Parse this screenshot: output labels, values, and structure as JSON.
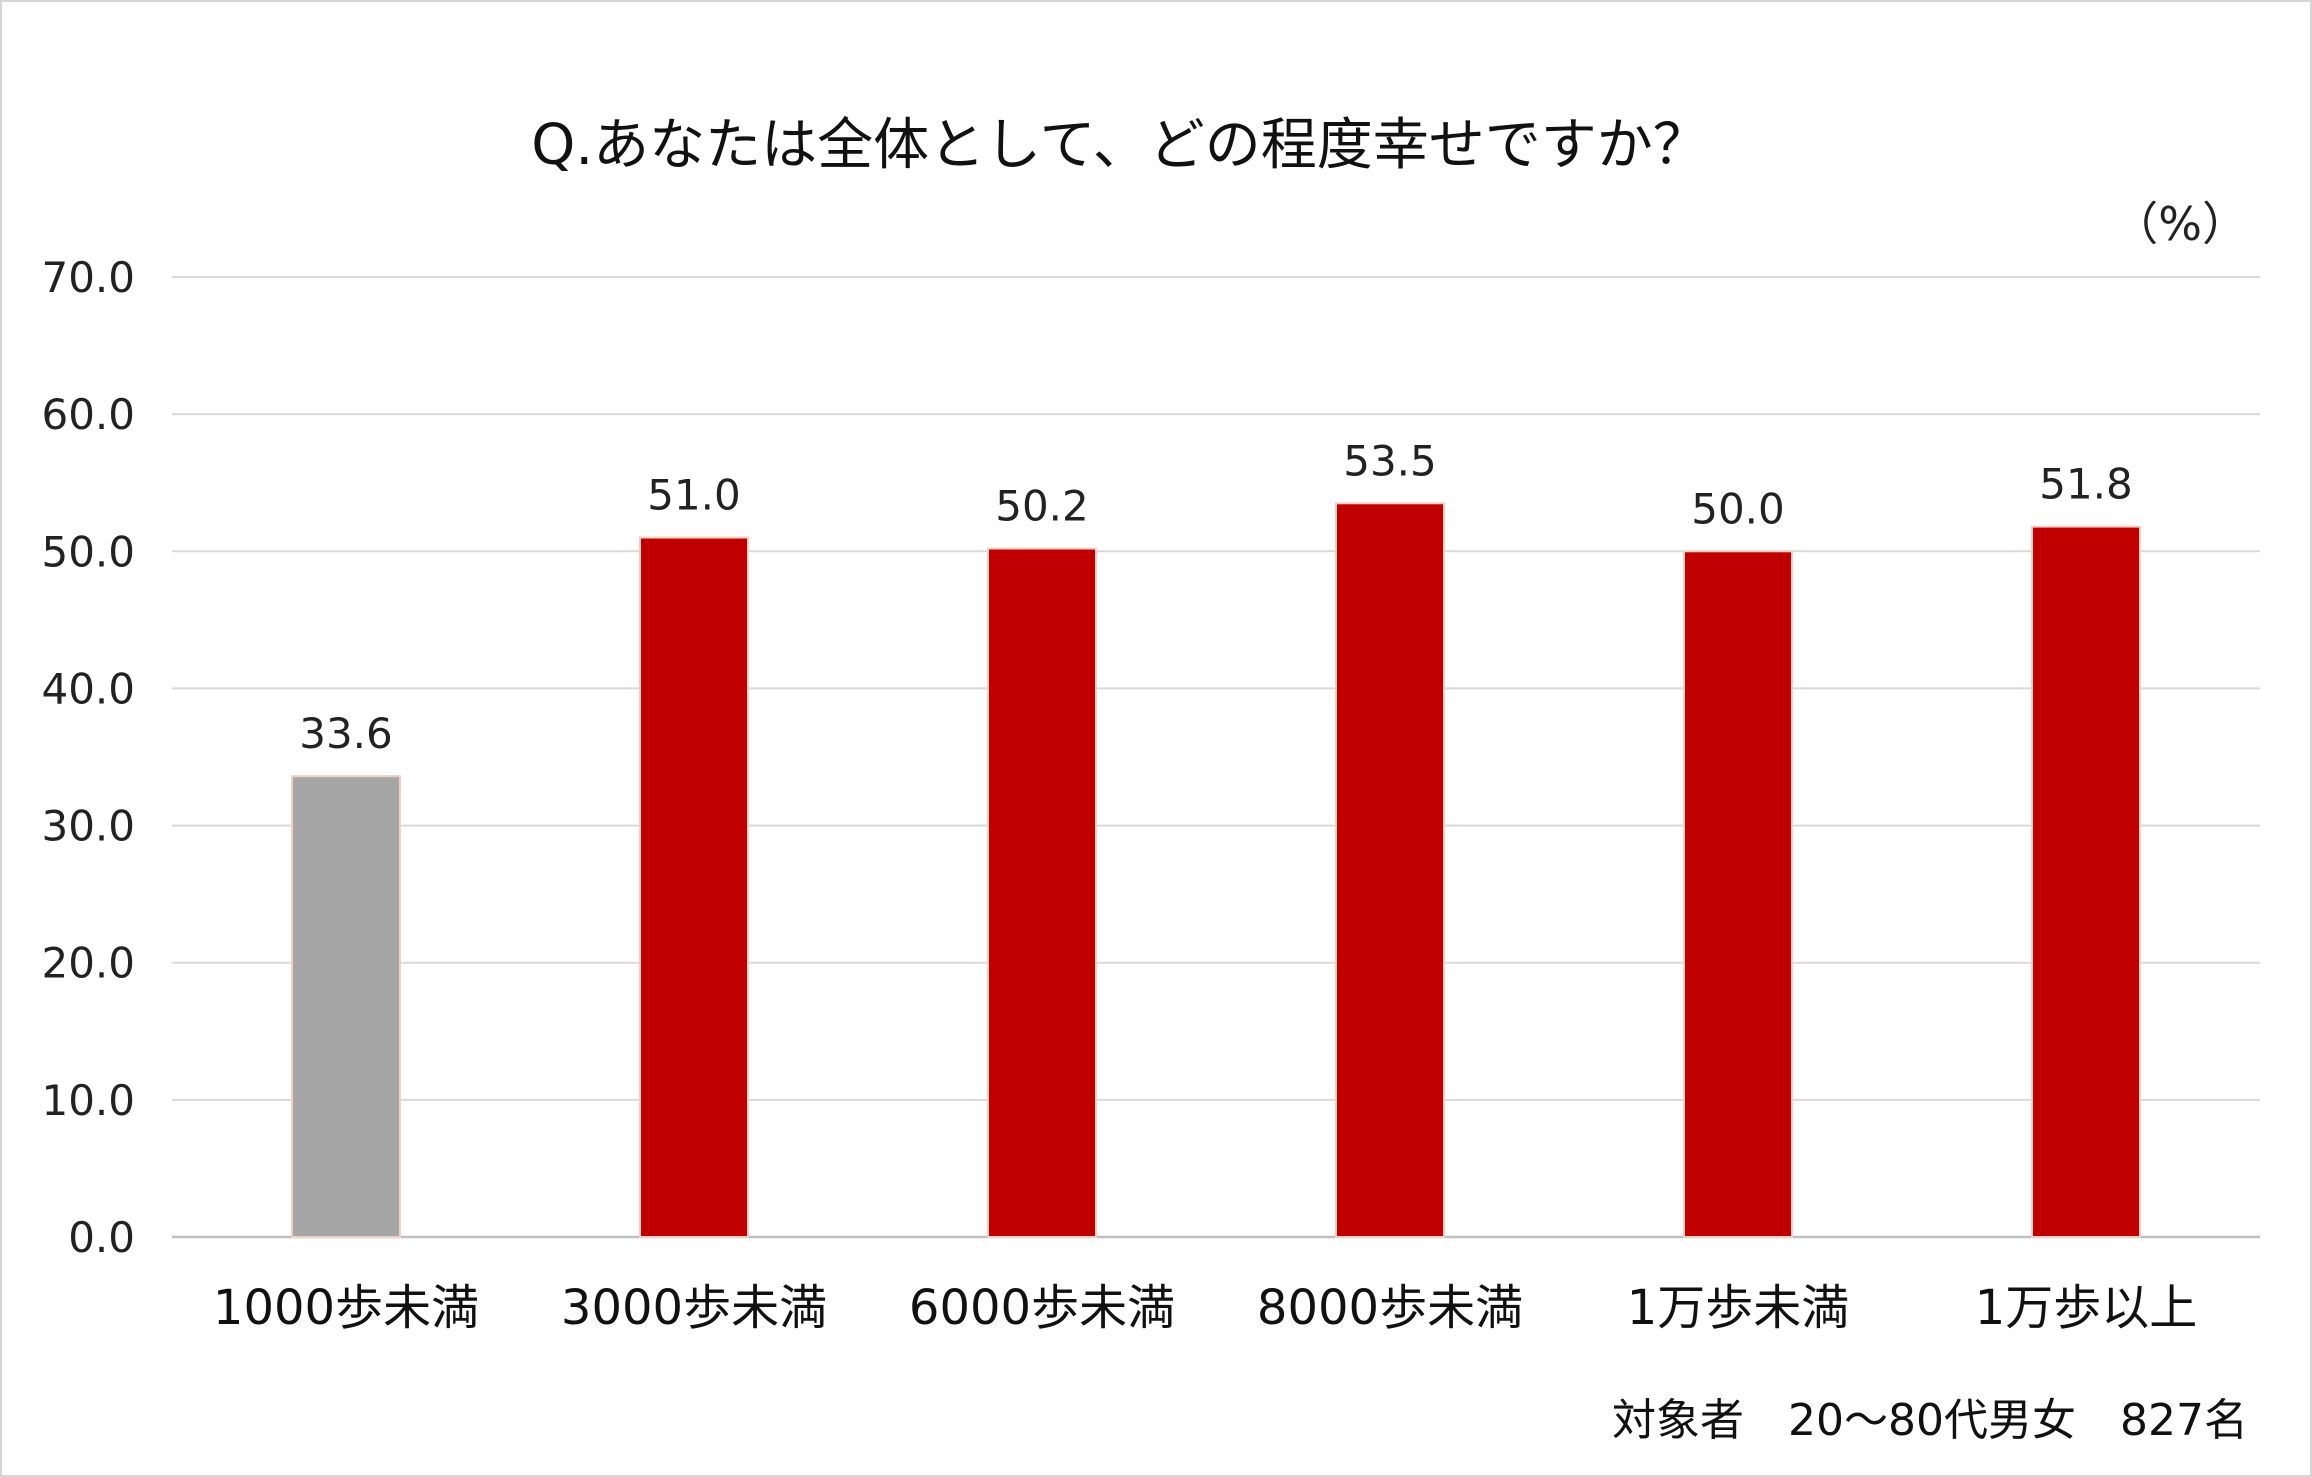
{
  "chart_data": {
    "type": "bar",
    "title": "Q.あなたは全体として、どの程度幸せですか？",
    "unit": "（%）",
    "categories": [
      "1000歩未満",
      "3000歩未満",
      "6000歩未満",
      "8000歩未満",
      "1万歩未満",
      "1万歩以上"
    ],
    "values": [
      33.6,
      51.0,
      50.2,
      53.5,
      50.0,
      51.8
    ],
    "value_labels": [
      "33.6",
      "51.0",
      "50.2",
      "53.5",
      "50.0",
      "51.8"
    ],
    "bar_colors": [
      "#a6a6a6",
      "#c00000",
      "#c00000",
      "#c00000",
      "#c00000",
      "#c00000"
    ],
    "ylim": [
      0,
      70
    ],
    "yticks": [
      0,
      10,
      20,
      30,
      40,
      50,
      60,
      70
    ],
    "ytick_labels": [
      "0.0",
      "10.0",
      "20.0",
      "30.0",
      "40.0",
      "50.0",
      "60.0",
      "70.0"
    ],
    "grid": true,
    "legend": "none",
    "footnote": "対象者　20～80代男女　827名"
  }
}
